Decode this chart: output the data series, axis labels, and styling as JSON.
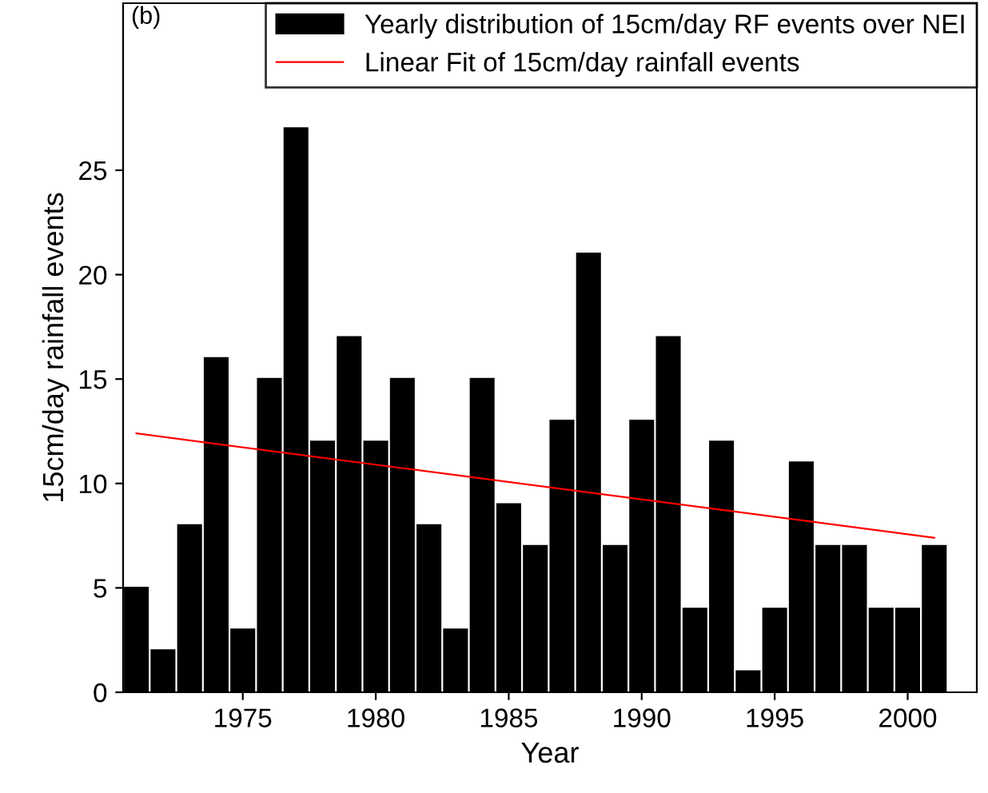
{
  "chart_data": {
    "type": "bar",
    "xlabel": "Year",
    "ylabel": "15cm/day rainfall events",
    "annotations": [
      "(b)"
    ],
    "x": [
      1971,
      1972,
      1973,
      1974,
      1975,
      1976,
      1977,
      1978,
      1979,
      1980,
      1981,
      1982,
      1983,
      1984,
      1985,
      1986,
      1987,
      1988,
      1989,
      1990,
      1991,
      1992,
      1993,
      1994,
      1995,
      1996,
      1997,
      1998,
      1999,
      2000,
      2001
    ],
    "series": [
      {
        "name": "Yearly distribution of 15cm/day RF events over NEI",
        "color": "#000000",
        "values": [
          5,
          2,
          8,
          16,
          3,
          15,
          27,
          12,
          17,
          12,
          15,
          8,
          3,
          15,
          9,
          7,
          13,
          21,
          7,
          13,
          17,
          4,
          12,
          1,
          4,
          11,
          7,
          7,
          4,
          4,
          7
        ]
      },
      {
        "name": "Linear Fit of 15cm/day rainfall events",
        "type": "line",
        "color": "#ff0000",
        "x": [
          1971,
          2001
        ],
        "values": [
          12.4,
          7.4
        ]
      }
    ],
    "xlim": [
      1970.5,
      2002.6
    ],
    "xticks": [
      1975,
      1980,
      1985,
      1990,
      1995,
      2000
    ],
    "ylim": [
      0,
      33
    ],
    "yticks": [
      0,
      5,
      10,
      15,
      20,
      25
    ],
    "grid": false,
    "legend": "top right"
  }
}
